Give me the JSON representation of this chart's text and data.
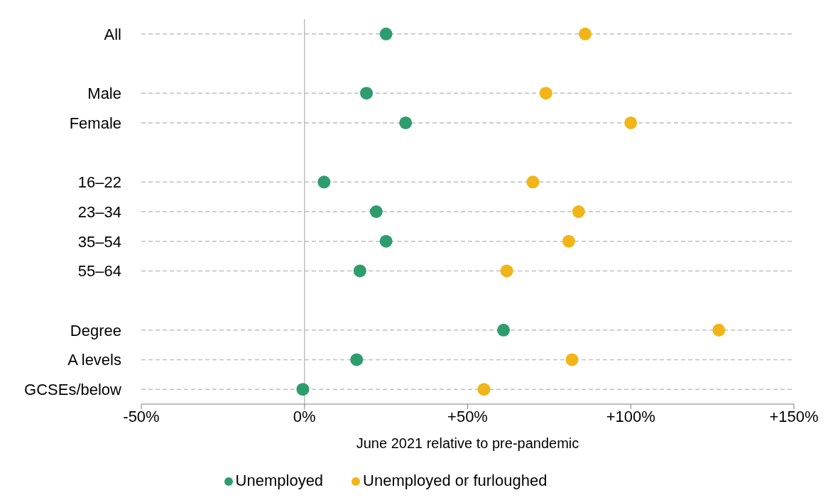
{
  "chart_data": {
    "type": "scatter",
    "xlabel": "June 2021 relative to pre-pandemic",
    "categories": [
      "All",
      null,
      "Male",
      "Female",
      null,
      "16–22",
      "23–34",
      "35–54",
      "55–64",
      null,
      "Degree",
      "A levels",
      "GCSEs/below"
    ],
    "series": [
      {
        "name": "Unemployed",
        "color": "#2e9d6e",
        "values": [
          25,
          null,
          19,
          31,
          null,
          6,
          22,
          25,
          17,
          null,
          61,
          16,
          -0.5
        ]
      },
      {
        "name": "Unemployed or furloughed",
        "color": "#f2b517",
        "values": [
          86,
          null,
          74,
          100,
          null,
          70,
          84,
          81,
          62,
          null,
          127,
          82,
          55
        ]
      }
    ],
    "xlim": [
      -50,
      150
    ],
    "xticks": [
      {
        "value": -50,
        "label": "-50%"
      },
      {
        "value": 0,
        "label": "0%"
      },
      {
        "value": 50,
        "label": "+50%"
      },
      {
        "value": 100,
        "label": "+100%"
      },
      {
        "value": 150,
        "label": "+150%"
      }
    ],
    "ref_lines": [
      {
        "axis": "x",
        "value": 0,
        "color": "#bfbfbf"
      }
    ],
    "grid": "y",
    "legend": "bottom",
    "marker": "circle",
    "orientation": "horizontal"
  }
}
